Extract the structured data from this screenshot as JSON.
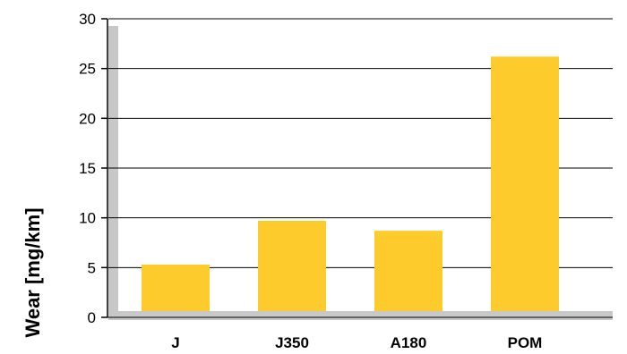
{
  "chart_data": {
    "type": "bar",
    "categories": [
      "J",
      "J350",
      "A180",
      "POM"
    ],
    "values": [
      5.3,
      9.7,
      8.7,
      26.2
    ],
    "ylabel": "Wear [mg/km]",
    "xlabel": "",
    "ylim": [
      0,
      30
    ],
    "yticks": [
      0,
      5,
      10,
      15,
      20,
      25,
      30
    ],
    "grid": true,
    "colors": {
      "bar": "#FDCB2C",
      "axis_shadow": "#C8C8C8",
      "grid": "#000000"
    }
  }
}
